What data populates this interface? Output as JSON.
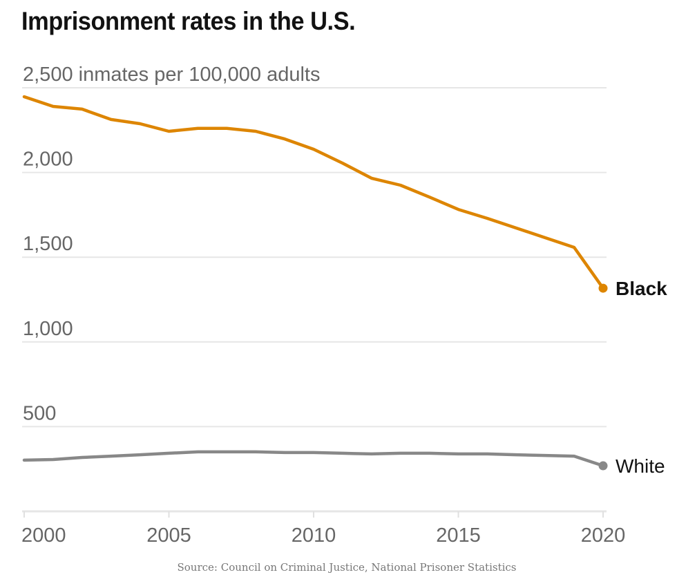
{
  "chart_data": {
    "type": "line",
    "title": "Imprisonment rates in the U.S.",
    "ylabel": "inmates per 100,000 adults",
    "ytick_suffix_top": " inmates per 100,000 adults",
    "xlabel": "",
    "ylim": [
      0,
      2500
    ],
    "xlim": [
      2000,
      2020
    ],
    "grid": true,
    "yticks": [
      {
        "value": 500,
        "label": "500"
      },
      {
        "value": 1000,
        "label": "1,000"
      },
      {
        "value": 1500,
        "label": "1,500"
      },
      {
        "value": 2000,
        "label": "2,000"
      },
      {
        "value": 2500,
        "label": "2,500 inmates per 100,000 adults"
      }
    ],
    "xticks": [
      {
        "value": 2000,
        "label": "2000"
      },
      {
        "value": 2005,
        "label": "2005"
      },
      {
        "value": 2010,
        "label": "2010"
      },
      {
        "value": 2015,
        "label": "2015"
      },
      {
        "value": 2020,
        "label": "2020"
      }
    ],
    "x": [
      2000,
      2001,
      2002,
      2003,
      2004,
      2005,
      2006,
      2007,
      2008,
      2009,
      2010,
      2011,
      2012,
      2013,
      2014,
      2015,
      2016,
      2017,
      2018,
      2019,
      2020
    ],
    "series": [
      {
        "name": "Black",
        "color": "#dd8500",
        "label_bold": true,
        "values": [
          2447,
          2390,
          2374,
          2313,
          2288,
          2243,
          2260,
          2260,
          2243,
          2198,
          2137,
          2055,
          1966,
          1925,
          1855,
          1782,
          1729,
          1672,
          1615,
          1558,
          1317
        ]
      },
      {
        "name": "White",
        "color": "#888888",
        "label_bold": false,
        "values": [
          302,
          306,
          318,
          326,
          334,
          343,
          351,
          351,
          351,
          347,
          347,
          343,
          339,
          343,
          343,
          339,
          339,
          334,
          330,
          326,
          269
        ]
      }
    ],
    "legend": "direct-labels-at-line-ends",
    "source": "Source: Council on Criminal Justice, National Prisoner Statistics"
  }
}
